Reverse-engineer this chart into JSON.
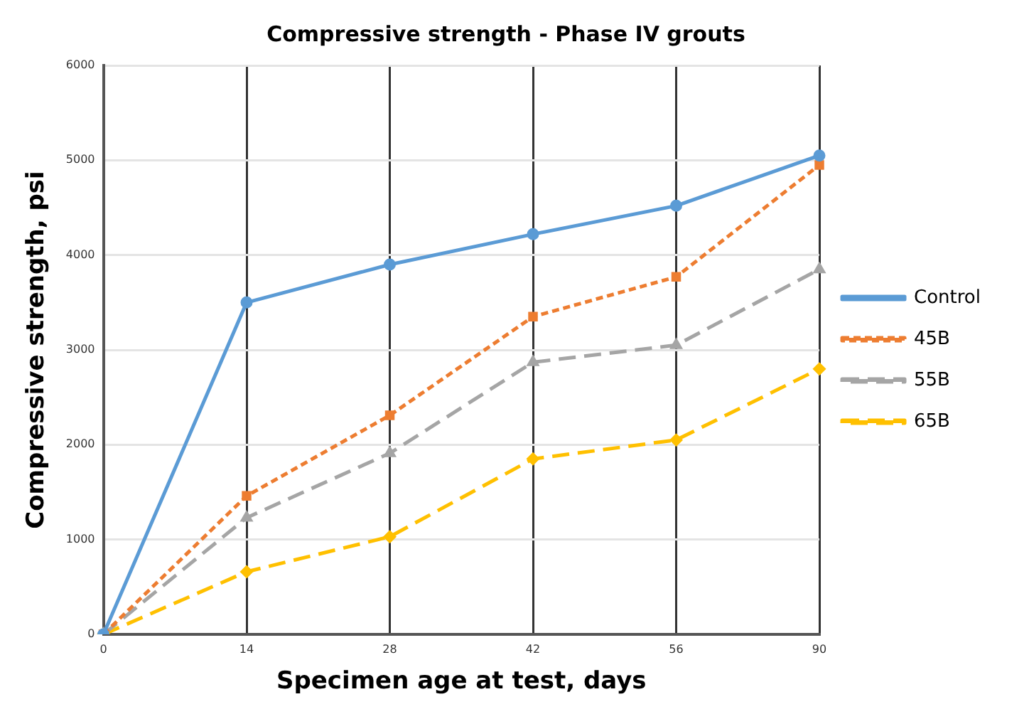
{
  "chart_data": {
    "type": "line",
    "title": "Compressive strength - Phase IV grouts",
    "xlabel": "Specimen age at test, days",
    "ylabel": "Compressive strength, psi",
    "categories": [
      "0",
      "14",
      "28",
      "42",
      "56",
      "90"
    ],
    "series": [
      {
        "name": "Control",
        "color": "#5b9bd5",
        "marker": "circle",
        "line_style": "solid",
        "values": [
          0,
          3500,
          3900,
          4220,
          4520,
          5050
        ]
      },
      {
        "name": "45B",
        "color": "#ed7d31",
        "marker": "square",
        "line_style": "dotted",
        "values": [
          0,
          1460,
          2310,
          3350,
          3770,
          4950
        ]
      },
      {
        "name": "55B",
        "color": "#a5a5a5",
        "marker": "triangle",
        "line_style": "dashed",
        "values": [
          0,
          1230,
          1910,
          2870,
          3050,
          3850
        ]
      },
      {
        "name": "65B",
        "color": "#ffc000",
        "marker": "diamond",
        "line_style": "dashed",
        "values": [
          0,
          660,
          1030,
          1850,
          2050,
          2800
        ]
      }
    ],
    "ylim": [
      0,
      6000
    ],
    "yticks": [
      0,
      1000,
      2000,
      3000,
      4000,
      5000,
      6000
    ],
    "grid": true,
    "legend": "right"
  }
}
